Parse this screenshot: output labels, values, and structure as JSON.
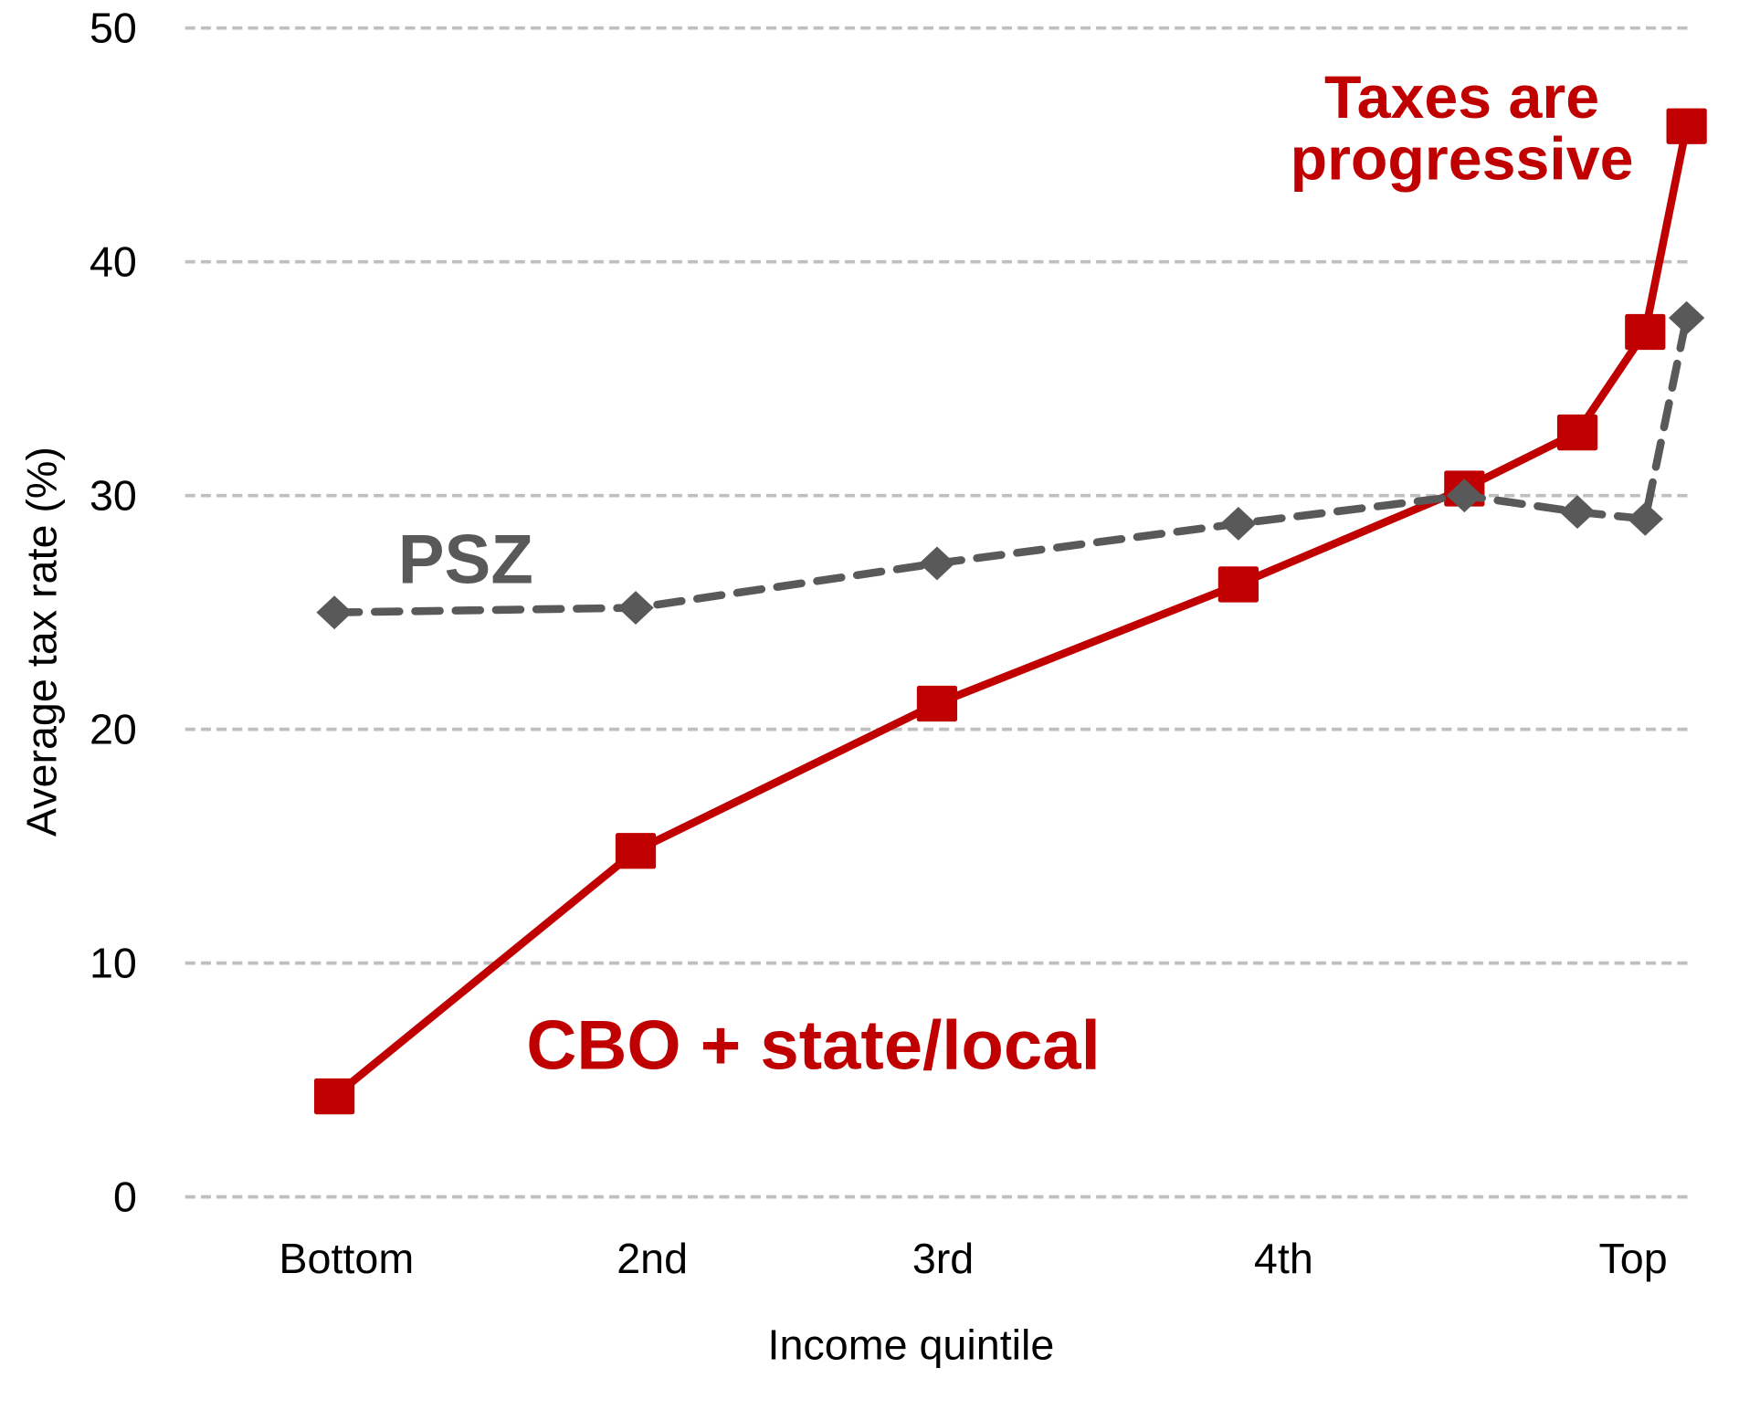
{
  "chart_data": {
    "type": "line",
    "title": "",
    "xlabel": "Income quintile",
    "ylabel": "Average tax rate (%)",
    "ylim": [
      0,
      50
    ],
    "yticks": [
      0,
      10,
      20,
      30,
      40,
      50
    ],
    "grid": "horizontal dashed",
    "x_unit": "income percentile (approx.)",
    "x": [
      10,
      30,
      50,
      70,
      85,
      92.5,
      97,
      99.75
    ],
    "categories": [
      "Bottom",
      "2nd",
      "3rd",
      "4th",
      "Top"
    ],
    "category_positions": [
      10.8,
      31.1,
      50.4,
      73,
      96.2
    ],
    "series": [
      {
        "name": "CBO + state/local",
        "color": "#c00000",
        "marker": "square",
        "style": "solid",
        "values": [
          4.3,
          14.8,
          21.1,
          26.2,
          30.3,
          32.7,
          37.0,
          45.8
        ]
      },
      {
        "name": "PSZ",
        "color": "#595959",
        "marker": "diamond",
        "style": "dashed",
        "values": [
          25.0,
          25.2,
          27.1,
          28.8,
          30.0,
          29.3,
          29.0,
          37.6
        ]
      }
    ],
    "annotations": [
      {
        "text": "Taxes are",
        "color": "#c00000"
      },
      {
        "text": "progressive",
        "color": "#c00000"
      },
      {
        "text": "PSZ",
        "color": "#595959"
      },
      {
        "text": "CBO + state/local",
        "color": "#c00000"
      }
    ]
  }
}
